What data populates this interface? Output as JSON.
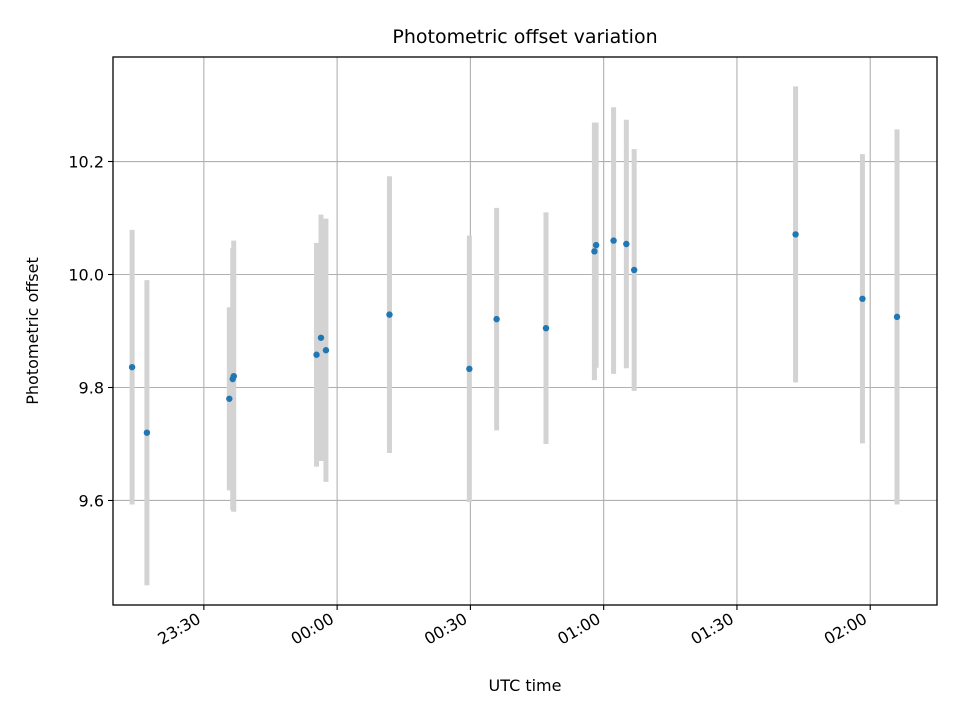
{
  "chart_data": {
    "type": "scatter",
    "title": "Photometric offset variation",
    "xlabel": "UTC time",
    "ylabel": "Photometric offset",
    "x_axis_kind": "time",
    "x_ticks": [
      "23:30",
      "00:00",
      "00:30",
      "01:00",
      "01:30",
      "02:00"
    ],
    "y_ticks": [
      "9.6",
      "9.8",
      "10.0",
      "10.2"
    ],
    "xlim": [
      "23:09:33",
      "02:15:02"
    ],
    "ylim": [
      9.415,
      10.385
    ],
    "grid": true,
    "colors": {
      "marker": "#1f77b4",
      "errorbar": "#d3d3d3",
      "grid": "#b0b0b0"
    },
    "points": [
      {
        "t": "23:13:51",
        "y": 9.836,
        "err": 0.243
      },
      {
        "t": "23:17:11",
        "y": 9.72,
        "err": 0.27
      },
      {
        "t": "23:35:44",
        "y": 9.78,
        "err": 0.162
      },
      {
        "t": "23:36:30",
        "y": 9.815,
        "err": 0.232
      },
      {
        "t": "23:36:44",
        "y": 9.82,
        "err": 0.24
      },
      {
        "t": "23:55:22",
        "y": 9.858,
        "err": 0.198
      },
      {
        "t": "23:56:22",
        "y": 9.888,
        "err": 0.218
      },
      {
        "t": "23:57:29",
        "y": 9.866,
        "err": 0.233
      },
      {
        "t": "00:11:47",
        "y": 9.929,
        "err": 0.245
      },
      {
        "t": "00:29:46",
        "y": 9.833,
        "err": 0.236
      },
      {
        "t": "00:35:54",
        "y": 9.921,
        "err": 0.197
      },
      {
        "t": "00:47:01",
        "y": 9.905,
        "err": 0.205
      },
      {
        "t": "00:57:55",
        "y": 10.041,
        "err": 0.228
      },
      {
        "t": "00:58:18",
        "y": 10.052,
        "err": 0.217
      },
      {
        "t": "01:02:14",
        "y": 10.06,
        "err": 0.236
      },
      {
        "t": "01:05:06",
        "y": 10.054,
        "err": 0.22
      },
      {
        "t": "01:06:52",
        "y": 10.008,
        "err": 0.214
      },
      {
        "t": "01:43:12",
        "y": 10.071,
        "err": 0.262
      },
      {
        "t": "01:58:15",
        "y": 9.957,
        "err": 0.256
      },
      {
        "t": "02:06:02",
        "y": 9.925,
        "err": 0.332
      }
    ]
  }
}
